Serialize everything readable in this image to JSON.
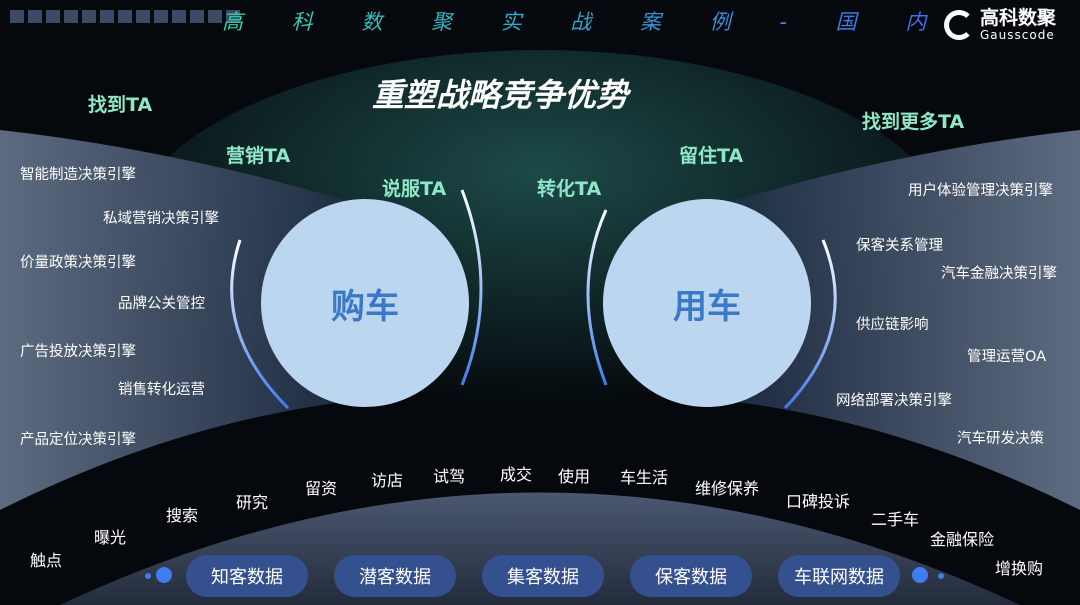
{
  "header": {
    "series_title": "高 科 数 聚 实 战 案 例 - 国 内",
    "logo_cn": "高科数聚",
    "logo_en": "Gausscode"
  },
  "title": "重塑战略竞争优势",
  "ta_labels": {
    "find": "找到TA",
    "market": "营销TA",
    "persuade": "说服TA",
    "convert": "转化TA",
    "retain": "留住TA",
    "find_more": "找到更多TA"
  },
  "circles": {
    "buy": "购车",
    "use": "用车"
  },
  "left_items": [
    "智能制造决策引擎",
    "私域营销决策引擎",
    "价量政策决策引擎",
    "品牌公关管控",
    "广告投放决策引擎",
    "销售转化运营",
    "产品定位决策引擎"
  ],
  "right_items": [
    "用户体验管理决策引擎",
    "保客关系管理",
    "汽车金融决策引擎",
    "供应链影响",
    "管理运营OA",
    "网络部署决策引擎",
    "汽车研发决策"
  ],
  "stages": [
    "触点",
    "曝光",
    "搜索",
    "研究",
    "留资",
    "访店",
    "试驾",
    "成交",
    "使用",
    "车生活",
    "维修保养",
    "口碑投诉",
    "二手车",
    "金融保险",
    "增换购"
  ],
  "data_pills": [
    "知客数据",
    "潜客数据",
    "集客数据",
    "保客数据",
    "车联网数据"
  ],
  "colors": {
    "ta": "#8ee8c8",
    "circle": "#bcd6ef",
    "circle_text": "#3a78c8",
    "pill": "#34508f",
    "arrow": "#3f7cf0"
  }
}
